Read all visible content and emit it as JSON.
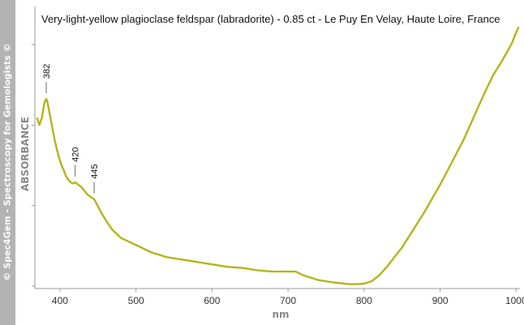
{
  "watermark": "© Spec4Gem - Spectroscopy for Gemologists ©",
  "chart_data": {
    "type": "line",
    "title": "Very-light-yellow plagioclase feldspar (labradorite) -  0.85 ct - Le Puy En Velay, Haute Loire, France",
    "xlabel": "nm",
    "ylabel": "ABSORBANCE",
    "xlim": [
      367,
      1005
    ],
    "ylim": [
      0,
      1
    ],
    "x_ticks": [
      400,
      500,
      600,
      700,
      800,
      900,
      1000
    ],
    "y_ticks": [
      0,
      0.333,
      0.666,
      1.0
    ],
    "grid": false,
    "series_color": "#b4b41c",
    "series": [
      {
        "x": [
          370,
          373,
          376,
          380,
          382,
          384,
          387,
          390,
          393,
          396,
          399,
          402,
          405,
          408,
          411,
          414,
          417,
          420,
          424,
          428,
          432,
          436,
          440,
          445,
          450,
          455,
          460,
          465,
          470,
          480,
          490,
          500,
          520,
          540,
          560,
          580,
          600,
          620,
          640,
          660,
          680,
          700,
          710,
          720,
          740,
          760,
          780,
          790,
          800,
          810,
          820,
          830,
          840,
          850,
          860,
          870,
          880,
          890,
          900,
          910,
          920,
          930,
          940,
          950,
          960,
          970,
          980,
          990,
          995,
          1000,
          1003
        ],
        "y": [
          0.695,
          0.667,
          0.695,
          0.765,
          0.775,
          0.755,
          0.705,
          0.655,
          0.605,
          0.565,
          0.53,
          0.5,
          0.48,
          0.455,
          0.44,
          0.43,
          0.425,
          0.43,
          0.42,
          0.41,
          0.395,
          0.38,
          0.37,
          0.36,
          0.33,
          0.3,
          0.275,
          0.25,
          0.23,
          0.2,
          0.185,
          0.17,
          0.14,
          0.12,
          0.11,
          0.1,
          0.09,
          0.08,
          0.075,
          0.065,
          0.06,
          0.06,
          0.06,
          0.045,
          0.025,
          0.015,
          0.008,
          0.008,
          0.01,
          0.02,
          0.045,
          0.08,
          0.12,
          0.16,
          0.21,
          0.26,
          0.31,
          0.365,
          0.42,
          0.48,
          0.54,
          0.6,
          0.67,
          0.74,
          0.81,
          0.875,
          0.925,
          0.98,
          1.01,
          1.05,
          1.07
        ]
      }
    ],
    "annotations": [
      {
        "x": 382,
        "y": 0.775,
        "label": "382"
      },
      {
        "x": 420,
        "y": 0.43,
        "label": "420"
      },
      {
        "x": 445,
        "y": 0.36,
        "label": "445"
      }
    ]
  }
}
